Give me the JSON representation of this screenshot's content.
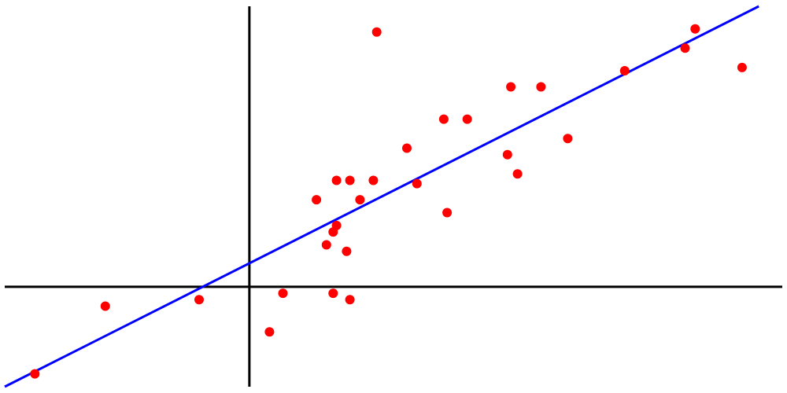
{
  "chart_data": {
    "type": "scatter",
    "title": "",
    "xlabel": "",
    "ylabel": "",
    "xlim": [
      -7.3,
      15.9
    ],
    "ylim": [
      -3.1,
      8.7
    ],
    "grid": false,
    "legend": "none",
    "colors": {
      "points": "#ff0000",
      "fit_line": "#0000ff",
      "axes": "#000000",
      "background": "#ffffff"
    },
    "series": [
      {
        "kind": "points",
        "x": [
          -6.4,
          -4.3,
          -1.5,
          0.6,
          1.0,
          2.0,
          2.3,
          2.5,
          2.5,
          2.6,
          2.6,
          2.9,
          3.0,
          3.0,
          3.3,
          3.7,
          3.8,
          4.7,
          5.0,
          5.8,
          5.9,
          6.5,
          7.7,
          7.8,
          8.0,
          8.7,
          9.5,
          11.2,
          13.0,
          13.3,
          14.7
        ],
        "y": [
          -2.7,
          -0.6,
          -0.4,
          -1.4,
          -0.2,
          2.7,
          1.3,
          -0.2,
          1.7,
          1.9,
          3.3,
          1.1,
          -0.4,
          3.3,
          2.7,
          3.3,
          7.9,
          4.3,
          3.2,
          5.2,
          2.3,
          5.2,
          4.1,
          6.2,
          3.5,
          6.2,
          4.6,
          6.7,
          7.4,
          8.0,
          6.8
        ]
      },
      {
        "kind": "line",
        "x": [
          -7.3,
          15.2
        ],
        "y": [
          -3.1,
          8.7
        ]
      }
    ]
  }
}
